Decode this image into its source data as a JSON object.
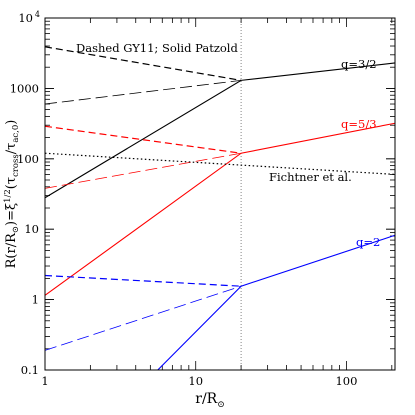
{
  "chart_data": {
    "type": "line",
    "xscale": "log",
    "yscale": "log",
    "xlim": [
      1,
      210
    ],
    "ylim": [
      0.1,
      10000
    ],
    "xlabel_main": "r/R",
    "xlabel_sub": "⊙",
    "ylabel_parts": {
      "a": "R(r/R",
      "b": "⊙",
      "c": ")=ξ",
      "d": "1/2",
      "e": "(τ",
      "f": "cross",
      "g": "/τ",
      "h": "ac,0",
      "i": ")"
    },
    "xticks": [
      {
        "value": 1,
        "label": "1"
      },
      {
        "value": 10,
        "label": "10"
      },
      {
        "value": 100,
        "label": "100"
      }
    ],
    "yticks": [
      {
        "value": 0.1,
        "label": "0.1"
      },
      {
        "value": 1,
        "label": "1"
      },
      {
        "value": 10,
        "label": "10"
      },
      {
        "value": 100,
        "label": "100"
      },
      {
        "value": 1000,
        "label": "1000"
      },
      {
        "value": 10000,
        "label": "10",
        "sup": "4"
      }
    ],
    "vline_x": 20,
    "annotations": {
      "header": "Dashed GY11; Solid Patzold",
      "q1": "q=3/2",
      "q2": "q=5/3",
      "q3": "q=2",
      "fichtner": "Fichtner et al."
    },
    "colors": {
      "black": "#000000",
      "red": "#ff0000",
      "blue": "#0000ff",
      "grid": "#666666"
    },
    "series": [
      {
        "group": "q=3/2",
        "color": "#000000",
        "style": "dashed",
        "x": [
          1,
          20
        ],
        "y": [
          3900,
          1300
        ]
      },
      {
        "group": "q=3/2",
        "color": "#000000",
        "style": "longdash",
        "x": [
          1,
          20
        ],
        "y": [
          600,
          1300
        ]
      },
      {
        "group": "q=3/2",
        "color": "#000000",
        "style": "solid",
        "x": [
          1,
          20,
          210
        ],
        "y": [
          28,
          1300,
          2300
        ]
      },
      {
        "group": "q=5/3",
        "color": "#ff0000",
        "style": "dashed",
        "x": [
          1,
          20
        ],
        "y": [
          290,
          120
        ]
      },
      {
        "group": "q=5/3",
        "color": "#ff0000",
        "style": "longdash",
        "x": [
          1,
          20
        ],
        "y": [
          38,
          120
        ]
      },
      {
        "group": "q=5/3",
        "color": "#ff0000",
        "style": "solid",
        "x": [
          1,
          20,
          210
        ],
        "y": [
          1.15,
          120,
          320
        ]
      },
      {
        "group": "q=2",
        "color": "#0000ff",
        "style": "dashed",
        "x": [
          1,
          20
        ],
        "y": [
          2.2,
          1.55
        ]
      },
      {
        "group": "q=2",
        "color": "#0000ff",
        "style": "longdash",
        "x": [
          1,
          20
        ],
        "y": [
          0.19,
          1.55
        ]
      },
      {
        "group": "q=2",
        "color": "#0000ff",
        "style": "solid",
        "x": [
          5.6,
          20,
          210
        ],
        "y": [
          0.1,
          1.55,
          8.2
        ]
      },
      {
        "group": "Fichtner et al.",
        "color": "#000000",
        "style": "dotted",
        "x": [
          1,
          210
        ],
        "y": [
          120,
          60
        ]
      }
    ]
  }
}
